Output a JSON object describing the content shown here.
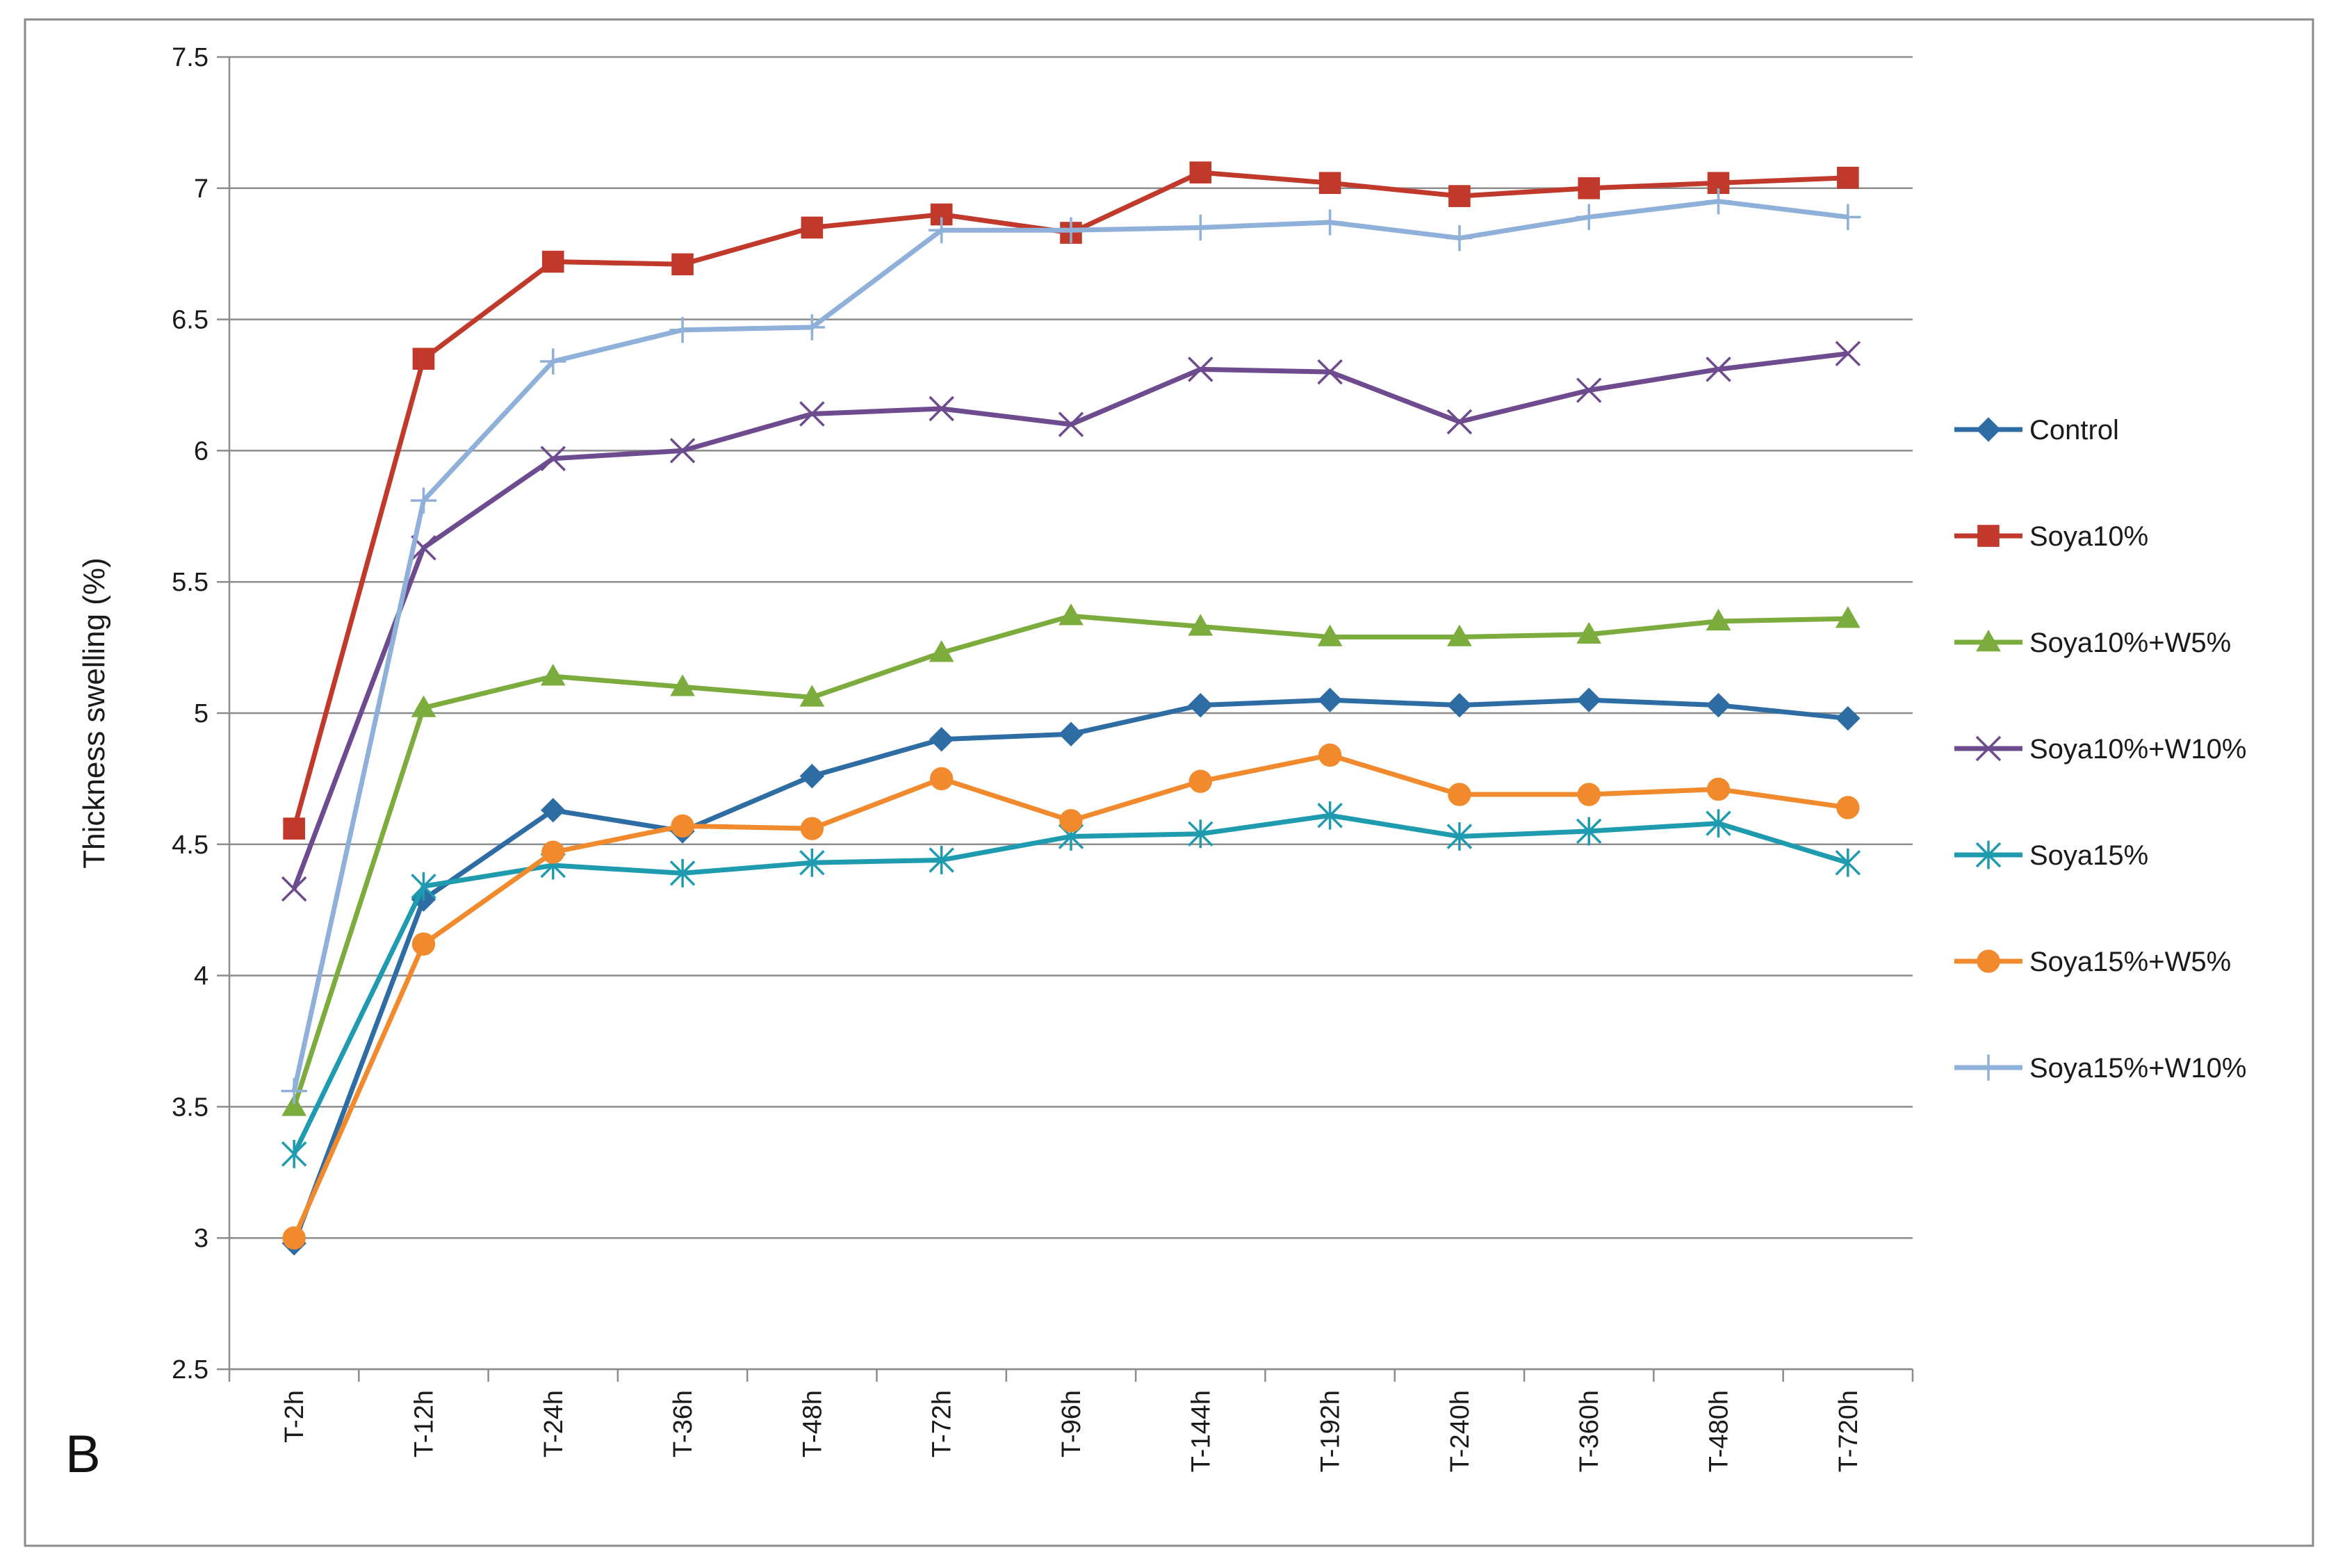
{
  "panel_label": "B",
  "chart_data": {
    "type": "line",
    "title": "",
    "xlabel": "",
    "ylabel": "Thickness swelling (%)",
    "ylim": [
      2.5,
      7.5
    ],
    "ytick_step": 0.5,
    "yticks": [
      "2.5",
      "3",
      "3.5",
      "4",
      "4.5",
      "5",
      "5.5",
      "6",
      "6.5",
      "7",
      "7.5"
    ],
    "grid": true,
    "legend_position": "right",
    "categories": [
      "T-2h",
      "T-12h",
      "T-24h",
      "T-36h",
      "T-48h",
      "T-72h",
      "T-96h",
      "T-144h",
      "T-192h",
      "T-240h",
      "T-360h",
      "T-480h",
      "T-720h"
    ],
    "series": [
      {
        "name": "Control",
        "color": "#2e6da4",
        "marker": "diamond",
        "values": [
          2.98,
          4.29,
          4.63,
          4.55,
          4.76,
          4.9,
          4.92,
          5.03,
          5.05,
          5.03,
          5.05,
          5.03,
          4.98
        ]
      },
      {
        "name": "Soya10%",
        "color": "#c0392b",
        "marker": "square",
        "values": [
          4.56,
          6.35,
          6.72,
          6.71,
          6.85,
          6.9,
          6.83,
          7.06,
          7.02,
          6.97,
          7.0,
          7.02,
          7.04
        ]
      },
      {
        "name": "Soya10%+W5%",
        "color": "#7cab3e",
        "marker": "triangle",
        "values": [
          3.5,
          5.02,
          5.14,
          5.1,
          5.06,
          5.23,
          5.37,
          5.33,
          5.29,
          5.29,
          5.3,
          5.35,
          5.36
        ]
      },
      {
        "name": "Soya10%+W10%",
        "color": "#6e4a8e",
        "marker": "x",
        "values": [
          4.33,
          5.63,
          5.97,
          6.0,
          6.14,
          6.16,
          6.1,
          6.31,
          6.3,
          6.11,
          6.23,
          6.31,
          6.37
        ]
      },
      {
        "name": "Soya15%",
        "color": "#1f9bb0",
        "marker": "asterisk",
        "values": [
          3.32,
          4.34,
          4.42,
          4.39,
          4.43,
          4.44,
          4.53,
          4.54,
          4.61,
          4.53,
          4.55,
          4.58,
          4.43
        ]
      },
      {
        "name": "Soya15%+W5%",
        "color": "#f08a2c",
        "marker": "circle",
        "values": [
          3.0,
          4.12,
          4.47,
          4.57,
          4.56,
          4.75,
          4.59,
          4.74,
          4.84,
          4.69,
          4.69,
          4.71,
          4.64
        ]
      },
      {
        "name": "Soya15%+W10%",
        "color": "#8fb0d8",
        "marker": "plus",
        "values": [
          3.56,
          5.81,
          6.34,
          6.46,
          6.47,
          6.84,
          6.84,
          6.85,
          6.87,
          6.81,
          6.89,
          6.95,
          6.89
        ]
      }
    ]
  }
}
